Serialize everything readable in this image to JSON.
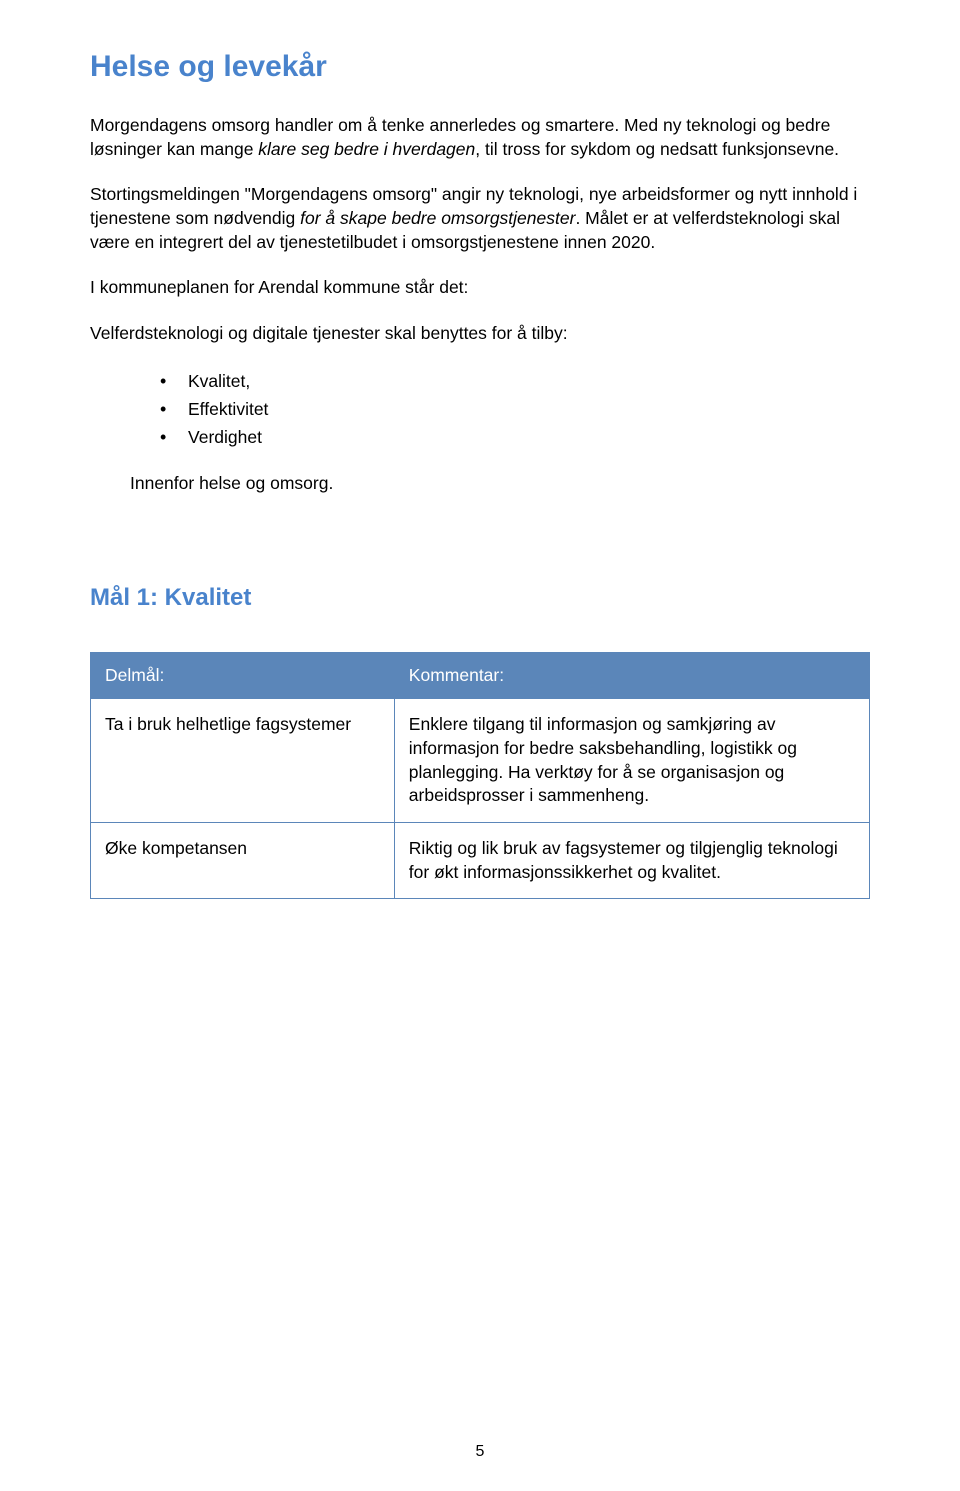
{
  "colors": {
    "heading": "#4983cc",
    "text": "#000000",
    "table_header_bg": "#5b86b9",
    "table_header_text": "#ffffff",
    "table_border": "#5b86b9",
    "background": "#ffffff"
  },
  "typography": {
    "title_fontsize": 30,
    "subtitle_fontsize": 24,
    "body_fontsize": 17.5,
    "font_family": "Arial"
  },
  "title": "Helse og levekår",
  "paragraphs": {
    "p1_a": "Morgendagens omsorg handler om å tenke annerledes og smartere. Med ny teknologi og bedre løsninger kan mange ",
    "p1_italic": "klare seg bedre i hverdagen",
    "p1_b": ", til tross for sykdom og nedsatt funksjonsevne.",
    "p2_a": "Stortingsmeldingen \"Morgendagens omsorg\" angir ny teknologi, nye arbeidsformer og nytt innhold i tjenestene som nødvendig ",
    "p2_italic": "for å skape bedre omsorgstjenester",
    "p2_b": ". Målet er at velferdsteknologi skal være en integrert del av tjenestetilbudet i omsorgstjenestene innen 2020.",
    "p3": "I kommuneplanen for Arendal kommune står det:",
    "p4": "Velferdsteknologi og digitale tjenester skal benyttes for å tilby:",
    "p5": "Innenfor helse og omsorg."
  },
  "bullets": {
    "b1": "Kvalitet,",
    "b2": "Effektivitet",
    "b3": "Verdighet"
  },
  "subtitle": "Mål 1: Kvalitet",
  "table": {
    "type": "table",
    "columns": [
      "Delmål:",
      "Kommentar:"
    ],
    "col_widths": [
      "39%",
      "61%"
    ],
    "header_bg": "#5b86b9",
    "header_color": "#ffffff",
    "border_color": "#5b86b9",
    "rows": [
      {
        "c1": "Ta i bruk helhetlige fagsystemer",
        "c2": "Enklere tilgang til informasjon og samkjøring av informasjon for bedre saksbehandling, logistikk og planlegging. Ha verktøy for å se organisasjon og arbeidsprosser i sammenheng."
      },
      {
        "c1": "Øke kompetansen",
        "c2": "Riktig og lik bruk av fagsystemer og tilgjenglig teknologi for økt informasjonssikkerhet og kvalitet."
      }
    ]
  },
  "page_number": "5"
}
